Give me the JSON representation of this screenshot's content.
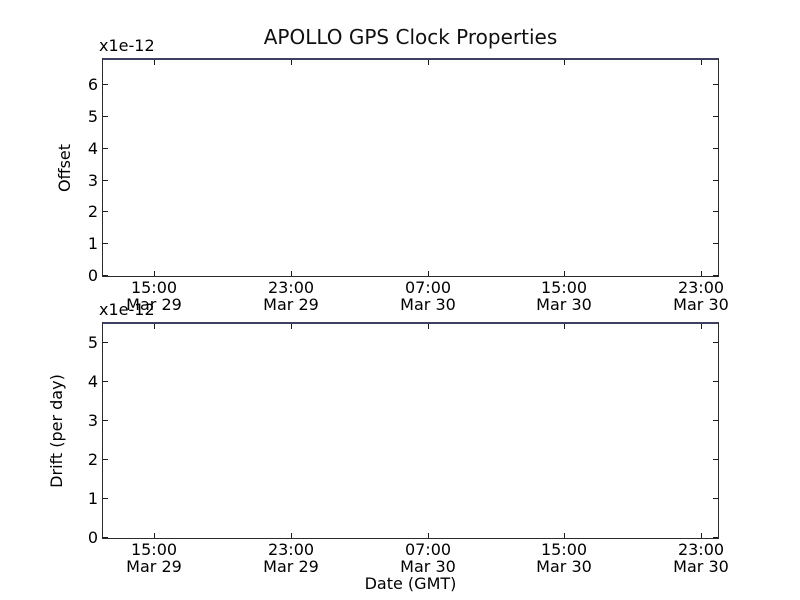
{
  "title": "APOLLO GPS Clock Properties",
  "xlabel": "Date (GMT)",
  "colors": {
    "background": "#ffffff",
    "text": "#000000",
    "spine": "#2b2b2b",
    "spine_top": "#3e3e5e",
    "tick": "#1c1c1c"
  },
  "chart_data": [
    {
      "type": "line",
      "subplot": "top",
      "title": "APOLLO GPS Clock Properties",
      "ylabel": "Offset",
      "y_offset_text": "x1e-12",
      "yticks": [
        0,
        1,
        2,
        3,
        4,
        5,
        6
      ],
      "ylim": [
        0,
        6.8
      ],
      "xlim": [
        "Mar 29 12:00",
        "Mar 31 00:00"
      ],
      "grid": false,
      "legend": null,
      "series": [],
      "xticks": [
        {
          "time": "15:00",
          "date": "Mar 29",
          "f": 0.0833
        },
        {
          "time": "23:00",
          "date": "Mar 29",
          "f": 0.3056
        },
        {
          "time": "07:00",
          "date": "Mar 30",
          "f": 0.5278
        },
        {
          "time": "15:00",
          "date": "Mar 30",
          "f": 0.75
        },
        {
          "time": "23:00",
          "date": "Mar 30",
          "f": 0.9722
        }
      ]
    },
    {
      "type": "line",
      "subplot": "bottom",
      "ylabel": "Drift (per day)",
      "y_offset_text": "x1e-12",
      "xlabel": "Date (GMT)",
      "yticks": [
        0,
        1,
        2,
        3,
        4,
        5
      ],
      "ylim": [
        0,
        5.5
      ],
      "xlim": [
        "Mar 29 12:00",
        "Mar 31 00:00"
      ],
      "grid": false,
      "legend": null,
      "series": [],
      "xticks": [
        {
          "time": "15:00",
          "date": "Mar 29",
          "f": 0.0833
        },
        {
          "time": "23:00",
          "date": "Mar 29",
          "f": 0.3056
        },
        {
          "time": "07:00",
          "date": "Mar 30",
          "f": 0.5278
        },
        {
          "time": "15:00",
          "date": "Mar 30",
          "f": 0.75
        },
        {
          "time": "23:00",
          "date": "Mar 30",
          "f": 0.9722
        }
      ]
    }
  ]
}
